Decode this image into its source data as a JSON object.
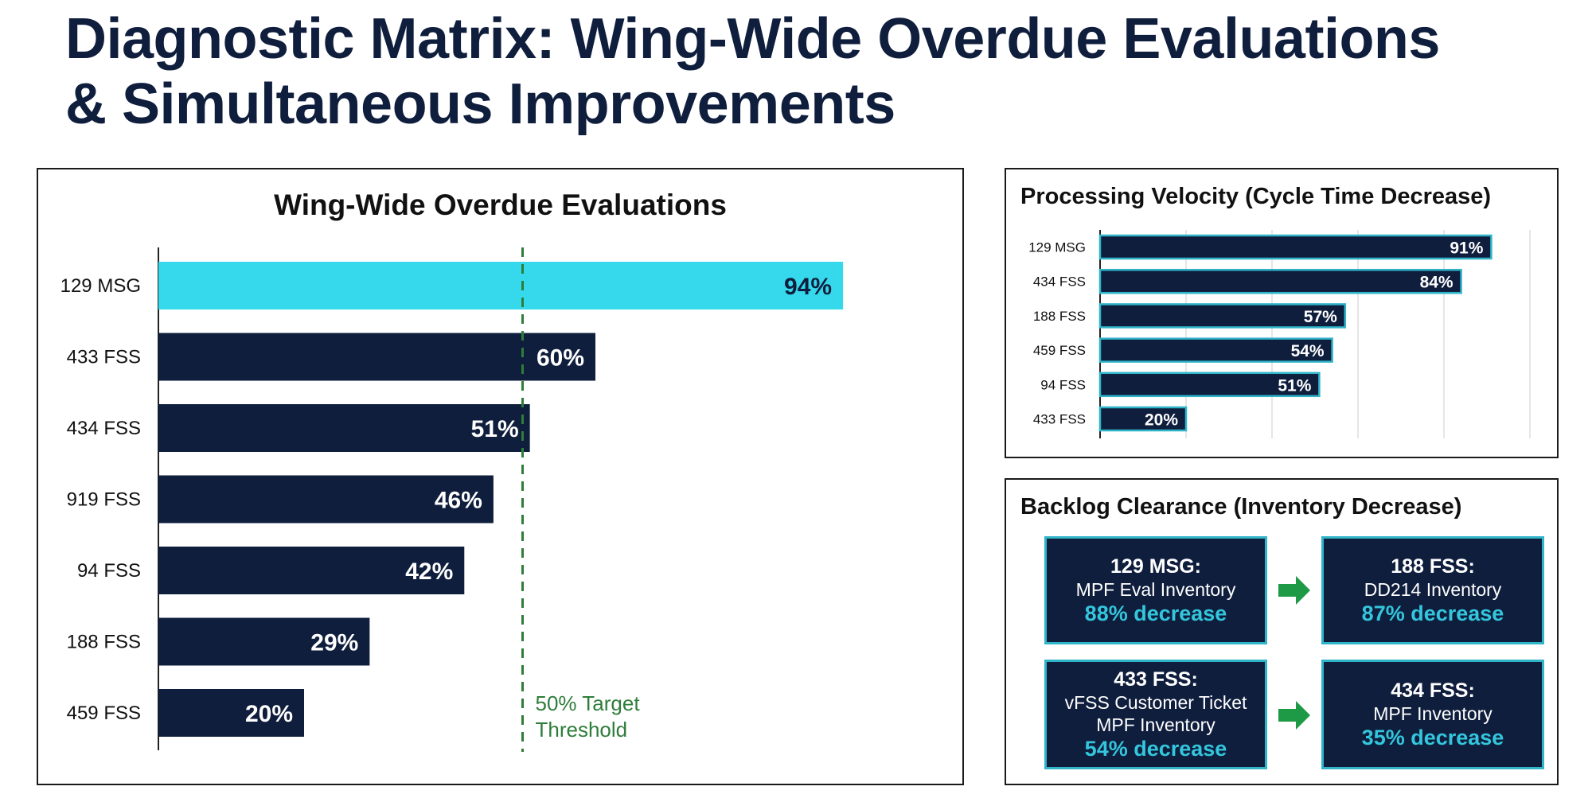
{
  "title": {
    "line1": "Diagnostic Matrix: Wing-Wide Overdue Evaluations",
    "line2": "& Simultaneous Improvements"
  },
  "colors": {
    "navy": "#0f1e3d",
    "highlight": "#36d8ec",
    "cyan_text": "#33c6dc",
    "threshold": "#2e7d3a",
    "arrow": "#1e9a46"
  },
  "chart_data": [
    {
      "type": "bar",
      "orientation": "horizontal",
      "title": "Wing-Wide Overdue Evaluations",
      "categories": [
        "129 MSG",
        "433 FSS",
        "434 FSS",
        "919 FSS",
        "94 FSS",
        "188 FSS",
        "459 FSS"
      ],
      "values": [
        94,
        60,
        51,
        46,
        42,
        29,
        20
      ],
      "value_labels": [
        "94%",
        "60%",
        "51%",
        "46%",
        "42%",
        "29%",
        "20%"
      ],
      "highlight_category": "129 MSG",
      "xlim": [
        0,
        100
      ],
      "threshold": {
        "value": 50,
        "label_line1": "50% Target",
        "label_line2": "Threshold"
      },
      "grid": false
    },
    {
      "type": "bar",
      "orientation": "horizontal",
      "title": "Processing Velocity (Cycle Time Decrease)",
      "categories": [
        "129 MSG",
        "434 FSS",
        "188 FSS",
        "459 FSS",
        "94 FSS",
        "433 FSS"
      ],
      "values": [
        91,
        84,
        57,
        54,
        51,
        20
      ],
      "value_labels": [
        "91%",
        "84%",
        "57%",
        "54%",
        "51%",
        "20%"
      ],
      "xlim": [
        0,
        100
      ],
      "grid": true
    }
  ],
  "backlog": {
    "title": "Backlog Clearance (Inventory Decrease)",
    "cards": [
      {
        "head": "129 MSG:",
        "lines": [
          "MPF Eval Inventory"
        ],
        "value": "88% decrease"
      },
      {
        "head": "188 FSS:",
        "lines": [
          "DD214 Inventory"
        ],
        "value": "87% decrease"
      },
      {
        "head": "433 FSS:",
        "lines": [
          "vFSS Customer Ticket",
          "MPF Inventory"
        ],
        "value": "54% decrease"
      },
      {
        "head": "434 FSS:",
        "lines": [
          "MPF Inventory"
        ],
        "value": "35% decrease"
      }
    ],
    "arrows": [
      "arrow-right-icon",
      "arrow-right-icon"
    ]
  }
}
